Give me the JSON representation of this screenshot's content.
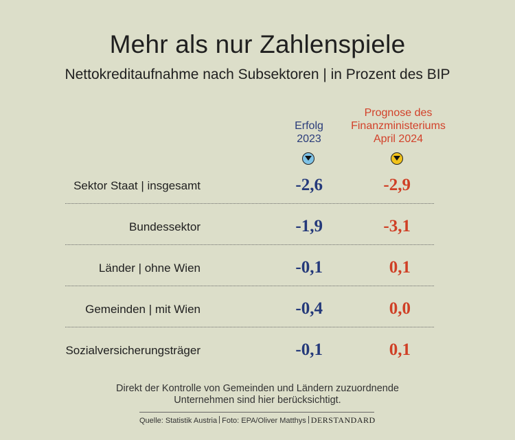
{
  "title": "Mehr als nur Zahlenspiele",
  "subtitle": "Nettokreditaufnahme nach Subsektoren | in Prozent des BIP",
  "columns": {
    "col1": {
      "line1": "Erfolg",
      "line2": "2023"
    },
    "col2": {
      "line1": "Prognose des",
      "line2": "Finanzministeriums",
      "line3": "April 2024"
    }
  },
  "chart_data": {
    "type": "table",
    "columns": [
      "Erfolg 2023",
      "Prognose des Finanzministeriums April 2024"
    ],
    "rows": [
      {
        "label": "Sektor Staat | insgesamt",
        "erfolg": "-2,6",
        "prognose": "-2,9"
      },
      {
        "label": "Bundessektor",
        "erfolg": "-1,9",
        "prognose": "-3,1"
      },
      {
        "label": "Länder | ohne Wien",
        "erfolg": "-0,1",
        "prognose": "0,1"
      },
      {
        "label": "Gemeinden | mit Wien",
        "erfolg": "-0,4",
        "prognose": "0,0"
      },
      {
        "label": "Sozialversicherungsträger",
        "erfolg": "-0,1",
        "prognose": "0,1"
      }
    ]
  },
  "note": {
    "line1": "Direkt der Kontrolle von Gemeinden und Ländern zuzuordnende",
    "line2": "Unternehmen sind hier berücksichtigt."
  },
  "footer": {
    "source": "Quelle: Statistik Austria",
    "photo": "Foto: EPA/Oliver Matthys",
    "brand": "DERSTANDARD"
  },
  "colors": {
    "background": "#dcdec9",
    "erfolg": "#24397a",
    "prognose": "#cf3f25",
    "marker_erfolg": "#7fc3e6",
    "marker_prognose": "#f1c21a"
  }
}
